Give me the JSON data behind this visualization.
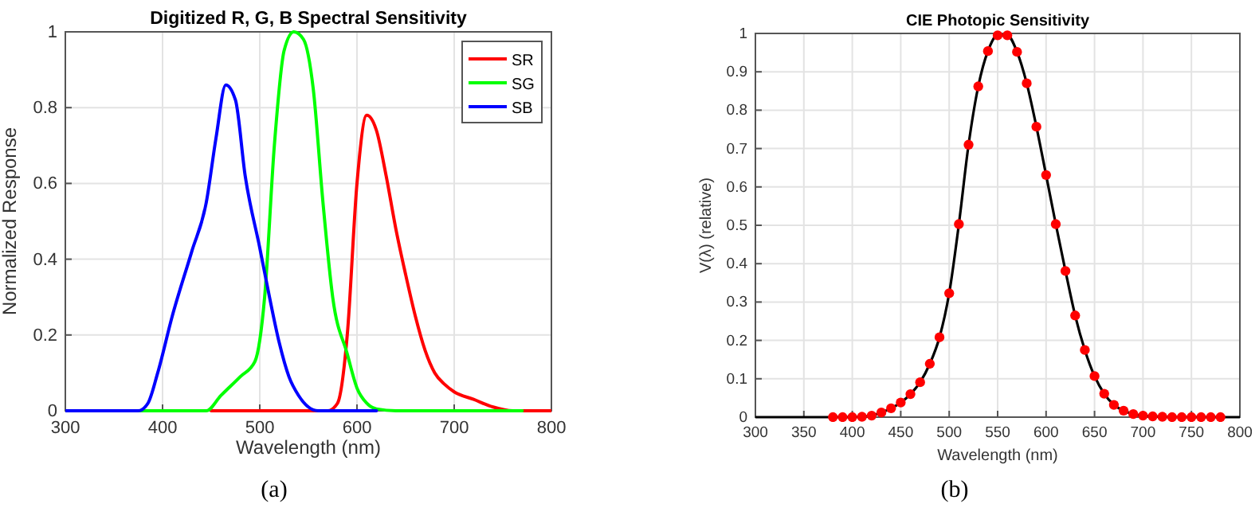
{
  "chart_data": [
    {
      "type": "line",
      "title": "Digitized R, G, B Spectral Sensitivity",
      "xlabel": "Wavelength (nm)",
      "ylabel": "Normalized Response",
      "xlim": [
        300,
        800
      ],
      "xticks": [
        300,
        400,
        500,
        600,
        700,
        800
      ],
      "ylim": [
        0,
        1
      ],
      "yticks": [
        0,
        0.2,
        0.4,
        0.6,
        0.8,
        1
      ],
      "grid": true,
      "legend": "top right",
      "annotations": [
        "(a)"
      ],
      "series": [
        {
          "name": "SR",
          "color": "#ff0000",
          "x": [
            450,
            570,
            580,
            590,
            600,
            610,
            620,
            630,
            640,
            650,
            660,
            670,
            680,
            690,
            700,
            720,
            740,
            760,
            800
          ],
          "values": [
            0,
            0,
            0.02,
            0.2,
            0.6,
            0.78,
            0.74,
            0.62,
            0.48,
            0.36,
            0.25,
            0.16,
            0.1,
            0.07,
            0.05,
            0.03,
            0.01,
            0,
            0
          ]
        },
        {
          "name": "SG",
          "color": "#00ff00",
          "x": [
            375,
            445,
            460,
            480,
            495,
            505,
            515,
            525,
            535,
            545,
            555,
            565,
            575,
            590,
            600,
            610,
            620,
            640,
            770
          ],
          "values": [
            0,
            0,
            0.04,
            0.09,
            0.13,
            0.3,
            0.7,
            0.95,
            1,
            0.98,
            0.85,
            0.55,
            0.3,
            0.15,
            0.06,
            0.02,
            0.005,
            0,
            0
          ]
        },
        {
          "name": "SB",
          "color": "#0000ff",
          "x": [
            300,
            375,
            385,
            395,
            410,
            430,
            445,
            455,
            465,
            475,
            485,
            500,
            510,
            520,
            530,
            540,
            550,
            560,
            620
          ],
          "values": [
            0,
            0,
            0.02,
            0.1,
            0.25,
            0.42,
            0.55,
            0.72,
            0.86,
            0.82,
            0.62,
            0.43,
            0.3,
            0.18,
            0.09,
            0.04,
            0.01,
            0,
            0
          ]
        }
      ]
    },
    {
      "type": "line",
      "title": "CIE Photopic Sensitivity",
      "xlabel": "Wavelength (nm)",
      "ylabel": "V(λ) (relative)",
      "xlim": [
        300,
        800
      ],
      "xticks": [
        300,
        350,
        400,
        450,
        500,
        550,
        600,
        650,
        700,
        750,
        800
      ],
      "ylim": [
        0,
        1
      ],
      "yticks": [
        0,
        0.1,
        0.2,
        0.3,
        0.4,
        0.5,
        0.6,
        0.7,
        0.8,
        0.9,
        1
      ],
      "grid": true,
      "annotations": [
        "(b)"
      ],
      "series": [
        {
          "color": "#000000",
          "x": [
            300,
            380,
            390,
            400,
            410,
            420,
            430,
            440,
            450,
            460,
            470,
            480,
            490,
            500,
            510,
            520,
            530,
            540,
            550,
            560,
            570,
            580,
            590,
            600,
            610,
            620,
            630,
            640,
            650,
            660,
            670,
            680,
            690,
            700,
            710,
            720,
            730,
            740,
            750,
            760,
            770,
            780,
            800
          ],
          "values": [
            0,
            0,
            0,
            0,
            0.001,
            0.004,
            0.012,
            0.023,
            0.038,
            0.06,
            0.091,
            0.139,
            0.208,
            0.323,
            0.503,
            0.71,
            0.862,
            0.954,
            0.995,
            0.995,
            0.952,
            0.87,
            0.757,
            0.631,
            0.503,
            0.381,
            0.265,
            0.175,
            0.107,
            0.061,
            0.032,
            0.017,
            0.008,
            0.004,
            0.002,
            0.001,
            0,
            0,
            0,
            0,
            0,
            0,
            0
          ]
        },
        {
          "type": "scatter",
          "color": "#ff0000",
          "marker": "circle",
          "x": [
            380,
            390,
            400,
            410,
            420,
            430,
            440,
            450,
            460,
            470,
            480,
            490,
            500,
            510,
            520,
            530,
            540,
            550,
            560,
            570,
            580,
            590,
            600,
            610,
            620,
            630,
            640,
            650,
            660,
            670,
            680,
            690,
            700,
            710,
            720,
            730,
            740,
            750,
            760,
            770,
            780
          ],
          "values": [
            0,
            0,
            0,
            0.001,
            0.004,
            0.012,
            0.023,
            0.038,
            0.06,
            0.091,
            0.139,
            0.208,
            0.323,
            0.503,
            0.71,
            0.862,
            0.954,
            0.995,
            0.995,
            0.952,
            0.87,
            0.757,
            0.631,
            0.503,
            0.381,
            0.265,
            0.175,
            0.107,
            0.061,
            0.032,
            0.017,
            0.008,
            0.004,
            0.002,
            0.001,
            0,
            0,
            0,
            0,
            0,
            0
          ]
        }
      ]
    }
  ]
}
